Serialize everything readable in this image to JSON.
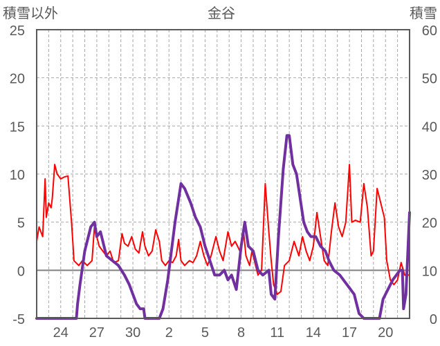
{
  "chart_data": {
    "type": "line",
    "title": "金谷",
    "ylabel_left": "積雪以外",
    "ylabel_right": "積雪",
    "ylim_left": [
      -5,
      25
    ],
    "ylim_right": [
      0,
      60
    ],
    "yticks_left": [
      "25",
      "20",
      "15",
      "10",
      "5",
      "0",
      "-5"
    ],
    "yticks_right": [
      "60",
      "50",
      "40",
      "30",
      "20",
      "10",
      "0"
    ],
    "x_domain": [
      0,
      31
    ],
    "xticks": [
      {
        "label": "24",
        "x": 2
      },
      {
        "label": "27",
        "x": 5
      },
      {
        "label": "30",
        "x": 8
      },
      {
        "label": "2",
        "x": 11
      },
      {
        "label": "5",
        "x": 14
      },
      {
        "label": "8",
        "x": 17
      },
      {
        "label": "11",
        "x": 20
      },
      {
        "label": "14",
        "x": 23
      },
      {
        "label": "17",
        "x": 26
      },
      {
        "label": "20",
        "x": 29
      }
    ],
    "grid": true,
    "series": [
      {
        "axis": "left",
        "color": "#ff0000",
        "points": [
          [
            0.0,
            3.0
          ],
          [
            0.2,
            4.5
          ],
          [
            0.5,
            3.5
          ],
          [
            0.7,
            9.5
          ],
          [
            0.8,
            5.5
          ],
          [
            1.0,
            7.0
          ],
          [
            1.2,
            6.5
          ],
          [
            1.3,
            7.5
          ],
          [
            1.5,
            11.0
          ],
          [
            1.7,
            10.0
          ],
          [
            2.0,
            9.5
          ],
          [
            2.3,
            9.7
          ],
          [
            2.6,
            9.8
          ],
          [
            2.9,
            5.0
          ],
          [
            3.0,
            3.0
          ],
          [
            3.1,
            1.0
          ],
          [
            3.5,
            0.5
          ],
          [
            3.8,
            1.0
          ],
          [
            4.2,
            0.5
          ],
          [
            4.6,
            1.0
          ],
          [
            4.8,
            4.5
          ],
          [
            5.0,
            3.5
          ],
          [
            5.2,
            2.5
          ],
          [
            5.5,
            2.0
          ],
          [
            5.8,
            1.5
          ],
          [
            6.1,
            2.0
          ],
          [
            6.4,
            0.8
          ],
          [
            6.8,
            1.0
          ],
          [
            7.1,
            3.8
          ],
          [
            7.3,
            2.8
          ],
          [
            7.6,
            2.5
          ],
          [
            7.9,
            3.5
          ],
          [
            8.2,
            2.2
          ],
          [
            8.5,
            1.8
          ],
          [
            8.8,
            4.0
          ],
          [
            9.0,
            2.5
          ],
          [
            9.3,
            1.5
          ],
          [
            9.6,
            2.0
          ],
          [
            9.9,
            4.2
          ],
          [
            10.2,
            3.0
          ],
          [
            10.4,
            1.0
          ],
          [
            10.7,
            0.5
          ],
          [
            11.0,
            1.0
          ],
          [
            11.3,
            0.8
          ],
          [
            11.6,
            1.5
          ],
          [
            11.8,
            3.2
          ],
          [
            12.0,
            1.0
          ],
          [
            12.3,
            0.5
          ],
          [
            12.7,
            1.0
          ],
          [
            13.0,
            0.8
          ],
          [
            13.3,
            1.5
          ],
          [
            13.6,
            3.0
          ],
          [
            13.9,
            1.5
          ],
          [
            14.2,
            0.5
          ],
          [
            14.5,
            1.5
          ],
          [
            14.9,
            3.5
          ],
          [
            15.2,
            2.0
          ],
          [
            15.5,
            1.0
          ],
          [
            15.9,
            4.0
          ],
          [
            16.2,
            2.5
          ],
          [
            16.5,
            3.0
          ],
          [
            16.9,
            2.0
          ],
          [
            17.2,
            4.0
          ],
          [
            17.4,
            1.5
          ],
          [
            17.7,
            0.5
          ],
          [
            17.9,
            2.0
          ],
          [
            18.1,
            1.0
          ],
          [
            18.4,
            -0.5
          ],
          [
            18.7,
            0.0
          ],
          [
            19.0,
            9.0
          ],
          [
            19.3,
            4.0
          ],
          [
            19.5,
            1.0
          ],
          [
            19.7,
            -1.5
          ],
          [
            20.0,
            -2.5
          ],
          [
            20.3,
            -2.2
          ],
          [
            20.6,
            0.5
          ],
          [
            21.0,
            1.0
          ],
          [
            21.4,
            3.0
          ],
          [
            21.8,
            1.5
          ],
          [
            22.1,
            3.5
          ],
          [
            22.4,
            2.0
          ],
          [
            22.7,
            1.0
          ],
          [
            23.0,
            2.5
          ],
          [
            23.3,
            6.0
          ],
          [
            23.6,
            3.5
          ],
          [
            23.9,
            1.0
          ],
          [
            24.2,
            0.5
          ],
          [
            24.5,
            4.0
          ],
          [
            24.8,
            7.0
          ],
          [
            25.1,
            4.5
          ],
          [
            25.4,
            3.5
          ],
          [
            25.7,
            5.0
          ],
          [
            26.0,
            11.0
          ],
          [
            26.2,
            5.0
          ],
          [
            26.5,
            5.2
          ],
          [
            26.9,
            5.0
          ],
          [
            27.2,
            9.0
          ],
          [
            27.5,
            6.5
          ],
          [
            27.8,
            1.5
          ],
          [
            28.0,
            2.0
          ],
          [
            28.3,
            8.5
          ],
          [
            28.6,
            7.0
          ],
          [
            28.9,
            5.5
          ],
          [
            29.1,
            1.0
          ],
          [
            29.4,
            -1.0
          ],
          [
            29.7,
            -1.5
          ],
          [
            30.0,
            -1.0
          ],
          [
            30.3,
            0.8
          ],
          [
            30.6,
            -0.5
          ],
          [
            31.0,
            -0.5
          ]
        ]
      },
      {
        "axis": "right",
        "color": "#7030a0",
        "points": [
          [
            0.0,
            0
          ],
          [
            3.3,
            0
          ],
          [
            3.4,
            3
          ],
          [
            3.6,
            7
          ],
          [
            4.0,
            14
          ],
          [
            4.5,
            19
          ],
          [
            4.8,
            20
          ],
          [
            5.0,
            17
          ],
          [
            5.3,
            18
          ],
          [
            5.8,
            13
          ],
          [
            6.3,
            12
          ],
          [
            6.8,
            11
          ],
          [
            7.3,
            9
          ],
          [
            7.7,
            7
          ],
          [
            8.0,
            5
          ],
          [
            8.3,
            3
          ],
          [
            8.6,
            2
          ],
          [
            8.9,
            2
          ],
          [
            9.0,
            0
          ],
          [
            10.2,
            0
          ],
          [
            10.5,
            2
          ],
          [
            10.9,
            8
          ],
          [
            11.5,
            20
          ],
          [
            12.0,
            28
          ],
          [
            12.3,
            27
          ],
          [
            12.8,
            24
          ],
          [
            13.2,
            21
          ],
          [
            13.6,
            19
          ],
          [
            14.0,
            15
          ],
          [
            14.4,
            12
          ],
          [
            14.8,
            9
          ],
          [
            15.2,
            9
          ],
          [
            15.6,
            10
          ],
          [
            15.9,
            8
          ],
          [
            16.2,
            9
          ],
          [
            16.6,
            6
          ],
          [
            17.0,
            15
          ],
          [
            17.3,
            20
          ],
          [
            17.6,
            15
          ],
          [
            18.0,
            14
          ],
          [
            18.4,
            10
          ],
          [
            18.8,
            9
          ],
          [
            19.3,
            10
          ],
          [
            19.5,
            5
          ],
          [
            19.8,
            4
          ],
          [
            20.1,
            17
          ],
          [
            20.5,
            31
          ],
          [
            20.8,
            38
          ],
          [
            21.0,
            38
          ],
          [
            21.3,
            32
          ],
          [
            21.6,
            30
          ],
          [
            21.9,
            25
          ],
          [
            22.2,
            20
          ],
          [
            22.5,
            18
          ],
          [
            22.8,
            17
          ],
          [
            23.2,
            17
          ],
          [
            23.6,
            15
          ],
          [
            24.0,
            14
          ],
          [
            24.3,
            12
          ],
          [
            24.7,
            10
          ],
          [
            25.2,
            9
          ],
          [
            25.8,
            7
          ],
          [
            26.4,
            5
          ],
          [
            26.8,
            1
          ],
          [
            27.2,
            0
          ],
          [
            28.5,
            0
          ],
          [
            28.8,
            4
          ],
          [
            29.2,
            6
          ],
          [
            29.6,
            8
          ],
          [
            29.9,
            9
          ],
          [
            30.2,
            10
          ],
          [
            30.4,
            10
          ],
          [
            30.5,
            2
          ],
          [
            30.7,
            5
          ],
          [
            31.0,
            22
          ]
        ]
      }
    ]
  }
}
